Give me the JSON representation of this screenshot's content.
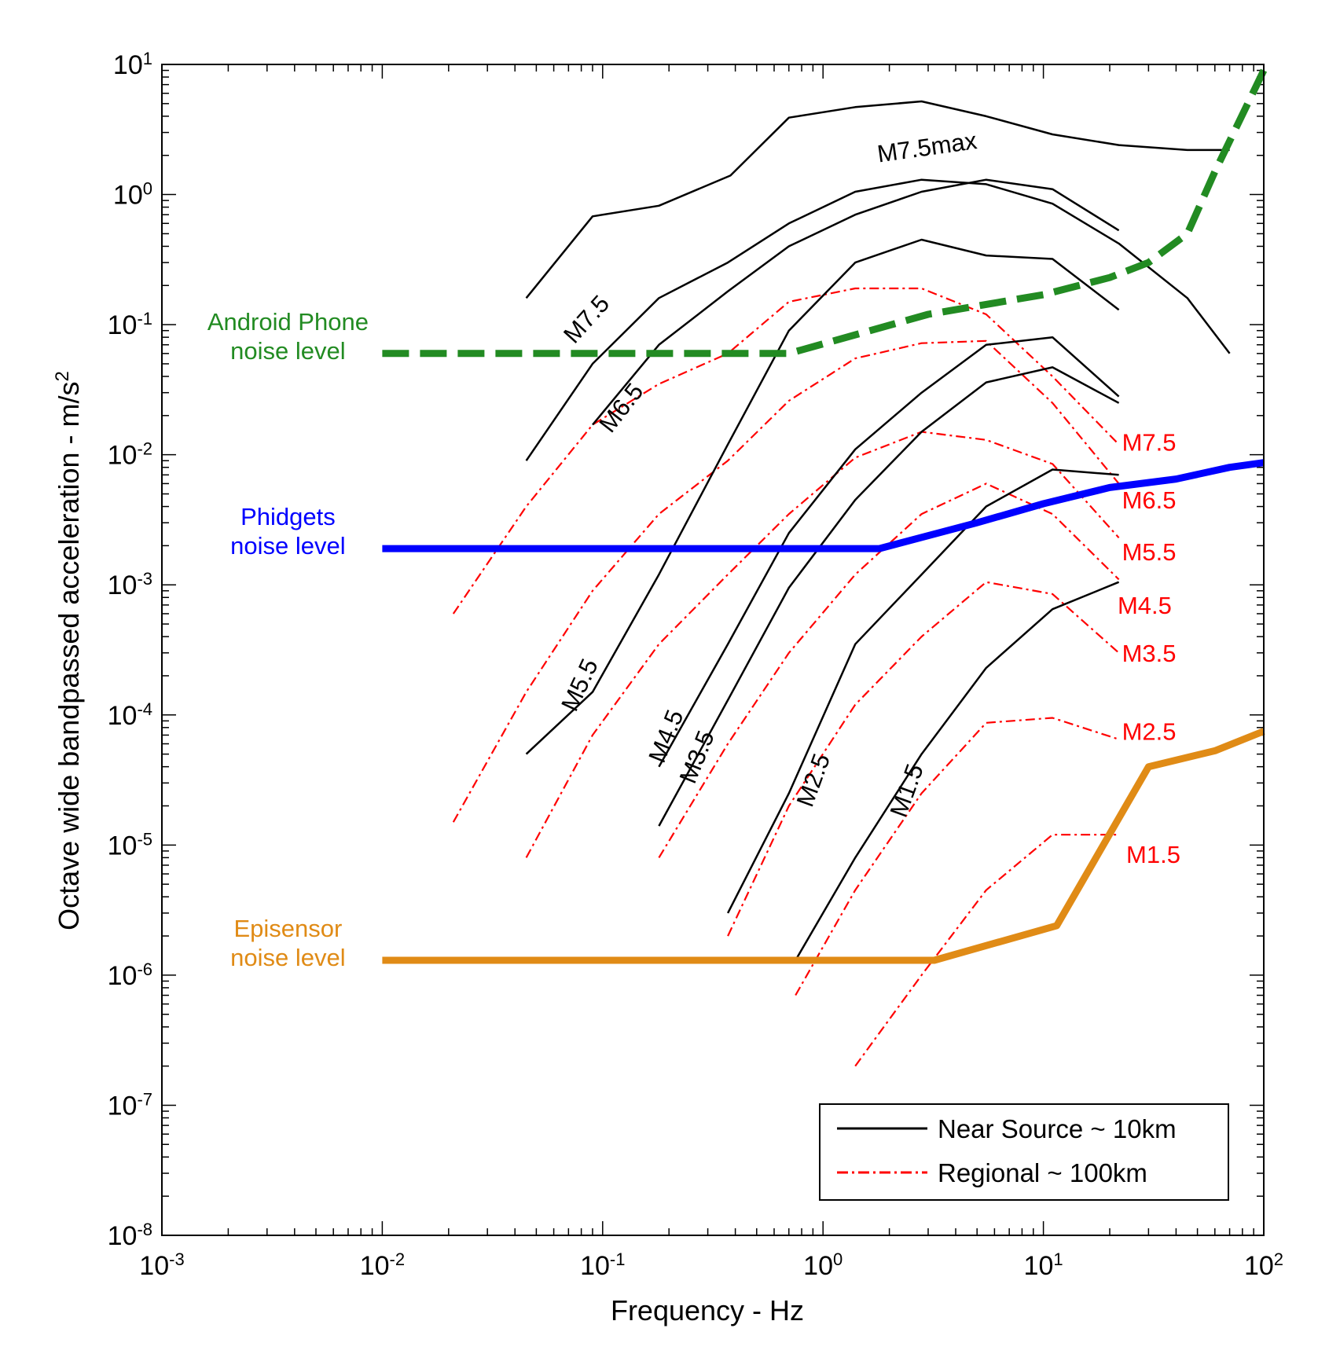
{
  "chart_data": {
    "type": "line",
    "x_scale": "log",
    "y_scale": "log",
    "xlim": [
      0.001,
      100
    ],
    "ylim": [
      1e-08,
      10
    ],
    "xlabel": "Frequency  -  Hz",
    "ylabel": "Octave wide bandpassed acceleration  -  m/s",
    "ylabel_exp": "2",
    "x_ticks": [
      {
        "base": "10",
        "exp": "-3",
        "value": 0.001
      },
      {
        "base": "10",
        "exp": "-2",
        "value": 0.01
      },
      {
        "base": "10",
        "exp": "-1",
        "value": 0.1
      },
      {
        "base": "10",
        "exp": "0",
        "value": 1
      },
      {
        "base": "10",
        "exp": "1",
        "value": 10
      },
      {
        "base": "10",
        "exp": "2",
        "value": 100
      }
    ],
    "y_ticks": [
      {
        "base": "10",
        "exp": "1",
        "value": 10
      },
      {
        "base": "10",
        "exp": "0",
        "value": 1
      },
      {
        "base": "10",
        "exp": "-1",
        "value": 0.1
      },
      {
        "base": "10",
        "exp": "-2",
        "value": 0.01
      },
      {
        "base": "10",
        "exp": "-3",
        "value": 0.001
      },
      {
        "base": "10",
        "exp": "-4",
        "value": 0.0001
      },
      {
        "base": "10",
        "exp": "-5",
        "value": 1e-05
      },
      {
        "base": "10",
        "exp": "-6",
        "value": 1e-06
      },
      {
        "base": "10",
        "exp": "-7",
        "value": 1e-07
      },
      {
        "base": "10",
        "exp": "-8",
        "value": 1e-08
      }
    ],
    "grid": false,
    "legend_position": "bottom-right",
    "legend": [
      {
        "label": "Near Source ~ 10km",
        "style": "solid",
        "color": "#000000"
      },
      {
        "label": "Regional ~ 100km",
        "style": "dashdot",
        "color": "#ff0000"
      }
    ],
    "noise_series": [
      {
        "label1": "Android Phone",
        "label2": "noise level",
        "color": "#228b22",
        "style": "dashed",
        "points": [
          [
            0.01,
            0.06
          ],
          [
            0.7,
            0.06
          ],
          [
            3,
            0.12
          ],
          [
            10,
            0.17
          ],
          [
            20,
            0.23
          ],
          [
            30,
            0.3
          ],
          [
            45,
            0.5
          ],
          [
            60,
            1.5
          ],
          [
            100,
            9
          ]
        ]
      },
      {
        "label1": "Phidgets",
        "label2": "noise level",
        "color": "#0000ff",
        "style": "solid",
        "points": [
          [
            0.01,
            0.0019
          ],
          [
            1.8,
            0.0019
          ],
          [
            5,
            0.003
          ],
          [
            10,
            0.0042
          ],
          [
            20,
            0.0056
          ],
          [
            40,
            0.0065
          ],
          [
            70,
            0.008
          ],
          [
            100,
            0.0087
          ]
        ]
      },
      {
        "label1": "Episensor",
        "label2": "noise level",
        "color": "#e08b16",
        "style": "solid",
        "points": [
          [
            0.01,
            1.3e-06
          ],
          [
            3.2,
            1.3e-06
          ],
          [
            11.5,
            2.4e-06
          ],
          [
            30,
            4e-05
          ],
          [
            60,
            5.3e-05
          ],
          [
            100,
            7.5e-05
          ]
        ]
      }
    ],
    "near_source_series": [
      {
        "name": "M7.5max",
        "points": [
          [
            0.045,
            0.16
          ],
          [
            0.09,
            0.68
          ],
          [
            0.18,
            0.82
          ],
          [
            0.38,
            1.4
          ],
          [
            0.7,
            3.9
          ],
          [
            1.4,
            4.7
          ],
          [
            2.8,
            5.2
          ],
          [
            5.5,
            4.0
          ],
          [
            11,
            2.9
          ],
          [
            22,
            2.4
          ],
          [
            45,
            2.2
          ],
          [
            70,
            2.2
          ]
        ]
      },
      {
        "name": "M7.5",
        "points": [
          [
            0.045,
            0.009
          ],
          [
            0.09,
            0.05
          ],
          [
            0.18,
            0.16
          ],
          [
            0.37,
            0.3
          ],
          [
            0.7,
            0.6
          ],
          [
            1.4,
            1.05
          ],
          [
            2.8,
            1.3
          ],
          [
            5.5,
            1.2
          ],
          [
            11,
            0.85
          ],
          [
            22,
            0.42
          ],
          [
            45,
            0.16
          ],
          [
            70,
            0.06
          ]
        ]
      },
      {
        "name": "M6.5",
        "points": [
          [
            0.09,
            0.017
          ],
          [
            0.18,
            0.07
          ],
          [
            0.37,
            0.18
          ],
          [
            0.7,
            0.4
          ],
          [
            1.4,
            0.7
          ],
          [
            2.8,
            1.05
          ],
          [
            5.5,
            1.3
          ],
          [
            11,
            1.1
          ],
          [
            22,
            0.53
          ]
        ]
      },
      {
        "name": "M5.5",
        "points": [
          [
            0.045,
            5e-05
          ],
          [
            0.09,
            0.00015
          ],
          [
            0.18,
            0.0012
          ],
          [
            0.37,
            0.012
          ],
          [
            0.7,
            0.09
          ],
          [
            1.4,
            0.3
          ],
          [
            2.8,
            0.45
          ],
          [
            5.5,
            0.34
          ],
          [
            11,
            0.32
          ],
          [
            22,
            0.13
          ]
        ]
      },
      {
        "name": "M4.5",
        "points": [
          [
            0.18,
            4e-05
          ],
          [
            0.37,
            0.00035
          ],
          [
            0.7,
            0.0025
          ],
          [
            1.4,
            0.011
          ],
          [
            2.8,
            0.03
          ],
          [
            5.5,
            0.07
          ],
          [
            11,
            0.08
          ],
          [
            22,
            0.028
          ]
        ]
      },
      {
        "name": "M3.5",
        "points": [
          [
            0.18,
            1.4e-05
          ],
          [
            0.37,
            0.00013
          ],
          [
            0.7,
            0.00095
          ],
          [
            1.4,
            0.0045
          ],
          [
            2.8,
            0.015
          ],
          [
            5.5,
            0.036
          ],
          [
            11,
            0.047
          ],
          [
            22,
            0.025
          ]
        ]
      },
      {
        "name": "M2.5",
        "points": [
          [
            0.37,
            3e-06
          ],
          [
            0.7,
            2.5e-05
          ],
          [
            1.4,
            0.00035
          ],
          [
            2.8,
            0.0012
          ],
          [
            5.5,
            0.004
          ],
          [
            11,
            0.0077
          ],
          [
            22,
            0.007
          ]
        ]
      },
      {
        "name": "M1.5",
        "points": [
          [
            0.75,
            1.3e-06
          ],
          [
            1.4,
            8e-06
          ],
          [
            2.8,
            5e-05
          ],
          [
            5.5,
            0.00023
          ],
          [
            11,
            0.00065
          ],
          [
            22,
            0.00105
          ]
        ]
      }
    ],
    "regional_series": [
      {
        "name": "M7.5",
        "points": [
          [
            0.021,
            0.0006
          ],
          [
            0.045,
            0.004
          ],
          [
            0.09,
            0.017
          ],
          [
            0.18,
            0.035
          ],
          [
            0.37,
            0.06
          ],
          [
            0.7,
            0.15
          ],
          [
            1.4,
            0.19
          ],
          [
            2.8,
            0.19
          ],
          [
            5.5,
            0.12
          ],
          [
            11,
            0.04
          ],
          [
            22,
            0.012
          ]
        ]
      },
      {
        "name": "M6.5",
        "points": [
          [
            0.021,
            1.5e-05
          ],
          [
            0.045,
            0.00015
          ],
          [
            0.09,
            0.0009
          ],
          [
            0.18,
            0.0035
          ],
          [
            0.37,
            0.009
          ],
          [
            0.7,
            0.026
          ],
          [
            1.4,
            0.055
          ],
          [
            2.8,
            0.072
          ],
          [
            5.5,
            0.075
          ],
          [
            11,
            0.025
          ],
          [
            22,
            0.006
          ]
        ]
      },
      {
        "name": "M5.5",
        "points": [
          [
            0.045,
            8e-06
          ],
          [
            0.09,
            7e-05
          ],
          [
            0.18,
            0.00035
          ],
          [
            0.37,
            0.0012
          ],
          [
            0.7,
            0.0035
          ],
          [
            1.4,
            0.0095
          ],
          [
            2.8,
            0.015
          ],
          [
            5.5,
            0.013
          ],
          [
            11,
            0.0085
          ],
          [
            22,
            0.0023
          ]
        ]
      },
      {
        "name": "M4.5",
        "points": [
          [
            0.18,
            8e-06
          ],
          [
            0.37,
            6e-05
          ],
          [
            0.7,
            0.0003
          ],
          [
            1.4,
            0.0012
          ],
          [
            2.8,
            0.0035
          ],
          [
            5.5,
            0.006
          ],
          [
            11,
            0.0035
          ],
          [
            22,
            0.0011
          ]
        ]
      },
      {
        "name": "M3.5",
        "points": [
          [
            0.37,
            2e-06
          ],
          [
            0.7,
            2e-05
          ],
          [
            1.4,
            0.00012
          ],
          [
            2.8,
            0.0004
          ],
          [
            5.5,
            0.00105
          ],
          [
            11,
            0.00085
          ],
          [
            22,
            0.0003
          ]
        ]
      },
      {
        "name": "M2.5",
        "points": [
          [
            0.75,
            7e-07
          ],
          [
            1.4,
            4.5e-06
          ],
          [
            2.8,
            2.5e-05
          ],
          [
            5.5,
            8.7e-05
          ],
          [
            11,
            9.5e-05
          ],
          [
            22,
            6.5e-05
          ]
        ]
      },
      {
        "name": "M1.5",
        "points": [
          [
            1.4,
            2e-07
          ],
          [
            2.8,
            1e-06
          ],
          [
            5.5,
            4.5e-06
          ],
          [
            11,
            1.2e-05
          ],
          [
            22,
            1.2e-05
          ]
        ]
      }
    ],
    "annotations_near": [
      {
        "text": "M7.5max",
        "x": 3.0,
        "y": 2.0,
        "angle": -8
      },
      {
        "text": "M7.5",
        "x": 0.09,
        "y": 0.1,
        "angle": -48
      },
      {
        "text": "M6.5",
        "x": 0.13,
        "y": 0.021,
        "angle": -52
      },
      {
        "text": "M5.5",
        "x": 0.085,
        "y": 0.00016,
        "angle": -65
      },
      {
        "text": "M4.5",
        "x": 0.21,
        "y": 6.5e-05,
        "angle": -68
      },
      {
        "text": "M3.5",
        "x": 0.29,
        "y": 4.5e-05,
        "angle": -68
      },
      {
        "text": "M2.5",
        "x": 0.98,
        "y": 3e-05,
        "angle": -70
      },
      {
        "text": "M1.5",
        "x": 2.6,
        "y": 2.5e-05,
        "angle": -70
      }
    ],
    "annotations_regional": [
      {
        "text": "M7.5",
        "x": 22,
        "y": 0.0125
      },
      {
        "text": "M6.5",
        "x": 22,
        "y": 0.0045
      },
      {
        "text": "M5.5",
        "x": 22,
        "y": 0.0018
      },
      {
        "text": "M4.5",
        "x": 21,
        "y": 0.0007
      },
      {
        "text": "M3.5",
        "x": 22,
        "y": 0.0003
      },
      {
        "text": "M2.5",
        "x": 22,
        "y": 7.5e-05
      },
      {
        "text": "M1.5",
        "x": 23,
        "y": 8.5e-06
      }
    ]
  }
}
